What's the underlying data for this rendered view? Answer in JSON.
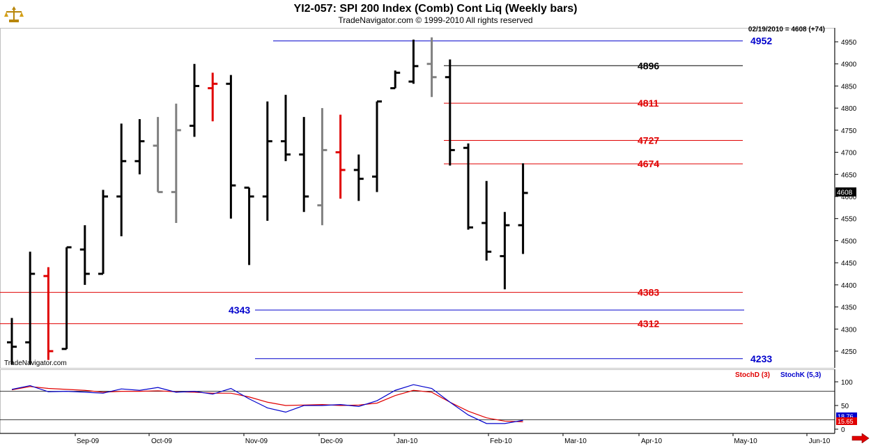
{
  "header": {
    "title": "YI2-057:  SPI 200 Index (Comb) Cont Liq  (Weekly bars)",
    "subtitle": "TradeNavigator.com © 1999-2010 All rights reserved",
    "readout": "02/19/2010 = 4608 (+74)",
    "watermark": "TradeNavigator.com"
  },
  "colors": {
    "bar_default": "#000000",
    "bar_grey": "#808080",
    "bar_red": "#e00000",
    "level_red": "#e00000",
    "level_blue": "#0000cc",
    "stoch_d": "#e00000",
    "stoch_k": "#0000cc",
    "last_price_bg": "#000000",
    "stoch_badge_bg": "#e00000",
    "nav_arrow": "#e00000"
  },
  "chart_data": [
    {
      "type": "ohlc",
      "price_axis": {
        "ticks": [
          4250,
          4300,
          4350,
          4400,
          4450,
          4500,
          4550,
          4600,
          4650,
          4700,
          4750,
          4800,
          4850,
          4900,
          4950
        ]
      },
      "time_axis": {
        "labels": [
          "Sep-09",
          "Oct-09",
          "Nov-09",
          "Dec-09",
          "Jan-10",
          "Feb-10",
          "Mar-10",
          "Apr-10",
          "May-10",
          "Jun-10"
        ]
      },
      "last_price": "4608",
      "bars": [
        {
          "o": 4270,
          "h": 4325,
          "l": 4220,
          "c": 4260,
          "color": "black"
        },
        {
          "o": 4270,
          "h": 4475,
          "l": 4220,
          "c": 4425,
          "color": "black"
        },
        {
          "o": 4420,
          "h": 4440,
          "l": 4230,
          "c": 4250,
          "color": "red"
        },
        {
          "o": 4255,
          "h": 4485,
          "l": 4255,
          "c": 4485,
          "color": "black"
        },
        {
          "o": 4480,
          "h": 4535,
          "l": 4400,
          "c": 4425,
          "color": "black"
        },
        {
          "o": 4425,
          "h": 4615,
          "l": 4425,
          "c": 4600,
          "color": "black"
        },
        {
          "o": 4600,
          "h": 4765,
          "l": 4510,
          "c": 4680,
          "color": "black"
        },
        {
          "o": 4680,
          "h": 4775,
          "l": 4650,
          "c": 4725,
          "color": "black"
        },
        {
          "o": 4715,
          "h": 4780,
          "l": 4610,
          "c": 4610,
          "color": "grey"
        },
        {
          "o": 4610,
          "h": 4810,
          "l": 4540,
          "c": 4750,
          "color": "grey"
        },
        {
          "o": 4760,
          "h": 4900,
          "l": 4735,
          "c": 4850,
          "color": "black"
        },
        {
          "o": 4845,
          "h": 4880,
          "l": 4770,
          "c": 4855,
          "color": "red"
        },
        {
          "o": 4855,
          "h": 4875,
          "l": 4550,
          "c": 4625,
          "color": "black"
        },
        {
          "o": 4620,
          "h": 4620,
          "l": 4445,
          "c": 4600,
          "color": "black"
        },
        {
          "o": 4600,
          "h": 4815,
          "l": 4545,
          "c": 4725,
          "color": "black"
        },
        {
          "o": 4725,
          "h": 4830,
          "l": 4680,
          "c": 4695,
          "color": "black"
        },
        {
          "o": 4695,
          "h": 4780,
          "l": 4565,
          "c": 4600,
          "color": "black"
        },
        {
          "o": 4580,
          "h": 4800,
          "l": 4535,
          "c": 4705,
          "color": "grey"
        },
        {
          "o": 4700,
          "h": 4785,
          "l": 4595,
          "c": 4660,
          "color": "red"
        },
        {
          "o": 4660,
          "h": 4695,
          "l": 4590,
          "c": 4640,
          "color": "black"
        },
        {
          "o": 4645,
          "h": 4815,
          "l": 4610,
          "c": 4815,
          "color": "black"
        },
        {
          "o": 4845,
          "h": 4885,
          "l": 4845,
          "c": 4880,
          "color": "black"
        },
        {
          "o": 4860,
          "h": 4955,
          "l": 4855,
          "c": 4895,
          "color": "black"
        },
        {
          "o": 4900,
          "h": 4960,
          "l": 4825,
          "c": 4870,
          "color": "grey"
        },
        {
          "o": 4870,
          "h": 4910,
          "l": 4670,
          "c": 4705,
          "color": "black"
        },
        {
          "o": 4710,
          "h": 4720,
          "l": 4525,
          "c": 4530,
          "color": "black"
        },
        {
          "o": 4540,
          "h": 4635,
          "l": 4455,
          "c": 4475,
          "color": "black"
        },
        {
          "o": 4465,
          "h": 4565,
          "l": 4390,
          "c": 4535,
          "color": "black"
        },
        {
          "o": 4535,
          "h": 4675,
          "l": 4470,
          "c": 4608,
          "color": "black"
        }
      ],
      "levels": [
        {
          "value": 4952,
          "label": "4952",
          "color": "blue",
          "side": "right"
        },
        {
          "value": 4896,
          "label": "4896",
          "color": "black",
          "side": "right"
        },
        {
          "value": 4811,
          "label": "4811",
          "color": "red",
          "side": "right"
        },
        {
          "value": 4727,
          "label": "4727",
          "color": "red",
          "side": "right"
        },
        {
          "value": 4674,
          "label": "4674",
          "color": "red",
          "side": "right"
        },
        {
          "value": 4383,
          "label": "4383",
          "color": "red",
          "side": "right"
        },
        {
          "value": 4343,
          "label": "4343",
          "color": "blue",
          "side": "left"
        },
        {
          "value": 4312,
          "label": "4312",
          "color": "red",
          "side": "right"
        },
        {
          "value": 4233,
          "label": "4233",
          "color": "blue",
          "side": "right"
        }
      ]
    },
    {
      "type": "line",
      "name": "Stochastic",
      "ticks": [
        0,
        50,
        100
      ],
      "reference_lines": [
        80,
        20
      ],
      "badge_values": [
        "18.76",
        "15.65"
      ],
      "series": [
        {
          "name": "StochD (3)",
          "color": "red",
          "values": [
            83,
            90,
            86,
            84,
            82,
            78,
            80,
            80,
            81,
            79,
            78,
            76,
            76,
            68,
            57,
            50,
            51,
            52,
            50,
            51,
            55,
            71,
            82,
            78,
            57,
            38,
            24,
            17,
            15.65
          ]
        },
        {
          "name": "StochK (5,3)",
          "color": "blue",
          "values": [
            84,
            92,
            79,
            80,
            78,
            76,
            85,
            82,
            88,
            78,
            80,
            74,
            86,
            64,
            45,
            36,
            50,
            50,
            52,
            48,
            60,
            82,
            94,
            86,
            57,
            30,
            12,
            12,
            18.76
          ]
        }
      ]
    }
  ]
}
